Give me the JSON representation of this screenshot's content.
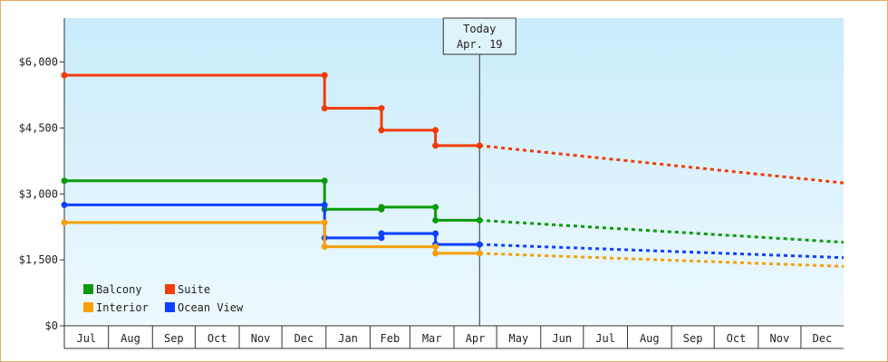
{
  "chart_data": {
    "type": "line",
    "title": "",
    "xlabel": "",
    "ylabel": "",
    "ylim": [
      0,
      7000
    ],
    "y_ticks": [
      0,
      1500,
      3000,
      4500,
      6000
    ],
    "y_tick_labels": [
      "$0",
      "$1,500",
      "$3,000",
      "$4,500",
      "$6,000"
    ],
    "x_ticks": [
      "Jul",
      "Aug",
      "Sep",
      "Oct",
      "Nov",
      "Dec",
      "Jan",
      "Feb",
      "Mar",
      "Apr",
      "May",
      "Jun",
      "Jul",
      "Aug",
      "Sep",
      "Oct",
      "Nov",
      "Dec"
    ],
    "x_range": [
      "2018-07-01",
      "2019-12-31"
    ],
    "grid": false,
    "legend_position": "bottom-left",
    "today_marker": {
      "label": "Today",
      "date_label": "Apr. 19",
      "date": "2019-04-19"
    },
    "series": [
      {
        "name": "Suite",
        "color": "#f03c0a",
        "points": [
          [
            "2018-07-01",
            5700
          ],
          [
            "2018-12-31",
            5700
          ],
          [
            "2018-12-31",
            4950
          ],
          [
            "2019-02-09",
            4950
          ],
          [
            "2019-02-09",
            4450
          ],
          [
            "2019-03-19",
            4450
          ],
          [
            "2019-03-19",
            4100
          ],
          [
            "2019-04-19",
            4100
          ]
        ],
        "forecast": [
          [
            "2019-04-19",
            4100
          ],
          [
            "2019-12-31",
            3250
          ]
        ]
      },
      {
        "name": "Balcony",
        "color": "#0c9a0c",
        "points": [
          [
            "2018-07-01",
            3300
          ],
          [
            "2018-12-31",
            3300
          ],
          [
            "2018-12-31",
            2650
          ],
          [
            "2019-02-09",
            2650
          ],
          [
            "2019-02-09",
            2700
          ],
          [
            "2019-03-19",
            2700
          ],
          [
            "2019-03-19",
            2400
          ],
          [
            "2019-04-19",
            2400
          ]
        ],
        "forecast": [
          [
            "2019-04-19",
            2400
          ],
          [
            "2019-12-31",
            1900
          ]
        ]
      },
      {
        "name": "Ocean View",
        "color": "#1040ff",
        "points": [
          [
            "2018-07-01",
            2750
          ],
          [
            "2018-12-31",
            2750
          ],
          [
            "2018-12-31",
            2000
          ],
          [
            "2019-02-09",
            2000
          ],
          [
            "2019-02-09",
            2100
          ],
          [
            "2019-03-19",
            2100
          ],
          [
            "2019-03-19",
            1850
          ],
          [
            "2019-04-19",
            1850
          ]
        ],
        "forecast": [
          [
            "2019-04-19",
            1850
          ],
          [
            "2019-12-31",
            1550
          ]
        ]
      },
      {
        "name": "Interior",
        "color": "#f5a00a",
        "points": [
          [
            "2018-07-01",
            2350
          ],
          [
            "2018-12-31",
            2350
          ],
          [
            "2018-12-31",
            1800
          ],
          [
            "2019-03-19",
            1800
          ],
          [
            "2019-03-19",
            1650
          ],
          [
            "2019-04-19",
            1650
          ]
        ],
        "forecast": [
          [
            "2019-04-19",
            1650
          ],
          [
            "2019-12-31",
            1350
          ]
        ]
      }
    ]
  }
}
